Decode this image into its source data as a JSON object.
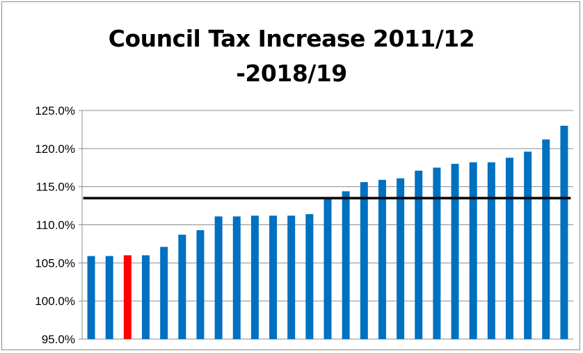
{
  "chart_data": {
    "type": "bar",
    "title": [
      "Council Tax Increase 2011/12",
      "-2018/19"
    ],
    "xlabel": "",
    "ylabel": "",
    "ylim": [
      95,
      125
    ],
    "yticks": [
      "95.0%",
      "100.0%",
      "105.0%",
      "110.0%",
      "115.0%",
      "120.0%",
      "125.0%"
    ],
    "ytick_values": [
      95,
      100,
      105,
      110,
      115,
      120,
      125
    ],
    "grid": "horizontal",
    "legend": "none",
    "bar_color": "#0070c0",
    "highlight_color": "#ff0000",
    "highlight_index": 2,
    "values": [
      105.9,
      105.9,
      106.0,
      106.0,
      107.1,
      108.7,
      109.3,
      111.1,
      111.1,
      111.2,
      111.2,
      111.2,
      111.4,
      113.5,
      114.4,
      115.6,
      115.9,
      116.1,
      117.1,
      117.5,
      118.0,
      118.2,
      118.2,
      118.8,
      119.6,
      121.2,
      123.0
    ],
    "reference_line": {
      "value": 113.5,
      "color": "#000000"
    }
  }
}
